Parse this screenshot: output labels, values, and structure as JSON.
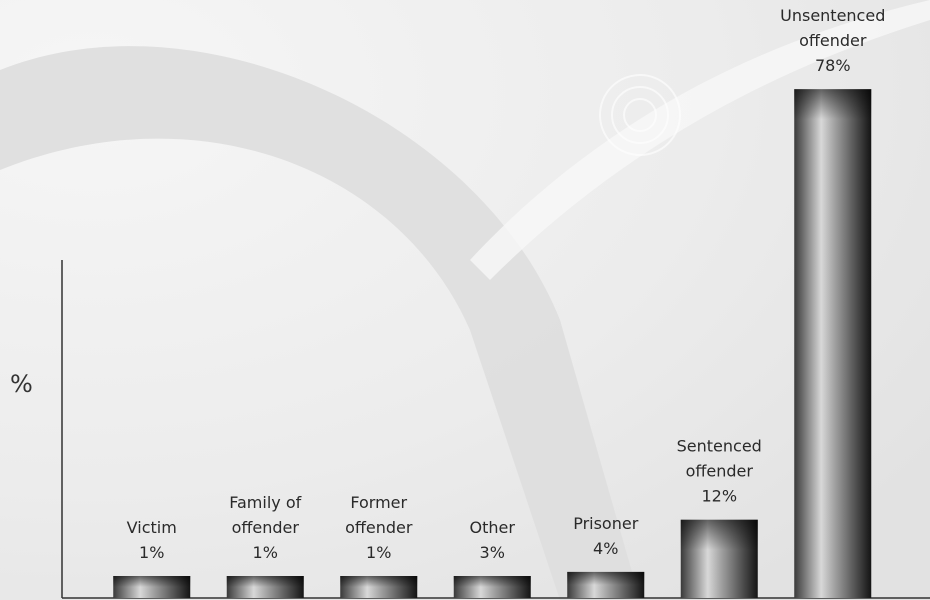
{
  "chart_data": {
    "type": "bar",
    "ylabel": "%",
    "categories": [
      [
        "Victim"
      ],
      [
        "Family of",
        "offender"
      ],
      [
        "Former",
        "offender"
      ],
      [
        "Other"
      ],
      [
        "Prisoner"
      ],
      [
        "Sentenced",
        "offender"
      ],
      [
        "Unsentenced",
        "offender"
      ]
    ],
    "values": [
      1,
      1,
      1,
      3,
      4,
      12,
      78
    ],
    "value_labels": [
      "1%",
      "1%",
      "1%",
      "3%",
      "4%",
      "12%",
      "78%"
    ],
    "ylim": [
      0,
      79.5
    ],
    "grid": false,
    "legend": "none",
    "colors": {
      "bar_dark": "#1a1a1a",
      "bar_light": "#e8e8e8",
      "axis": "#333333",
      "background": "#ececec"
    }
  }
}
